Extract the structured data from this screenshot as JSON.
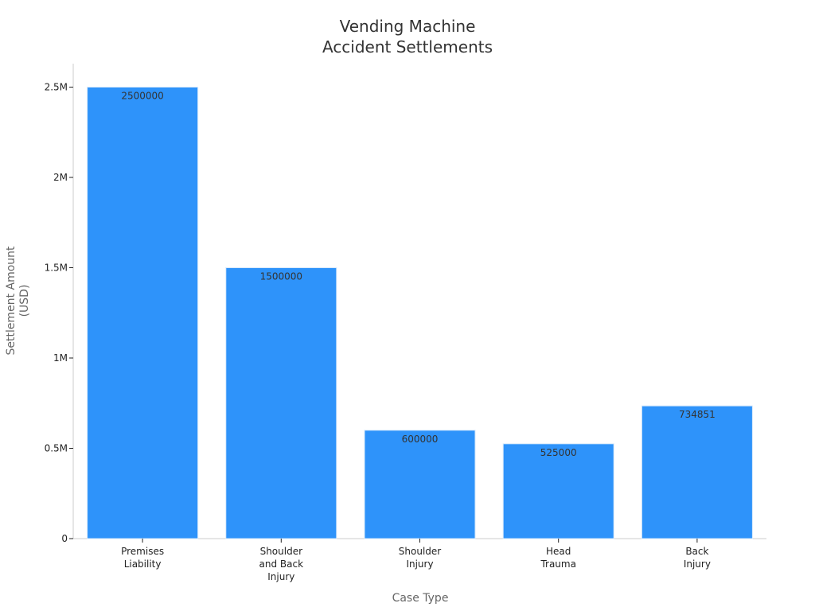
{
  "chart_data": {
    "type": "bar",
    "title": [
      "Vending Machine",
      "Accident Settlements"
    ],
    "xlabel": "Case Type",
    "ylabel": [
      "Settlement Amount",
      "(USD)"
    ],
    "categories": [
      [
        "Premises",
        "Liability"
      ],
      [
        "Shoulder",
        "and Back",
        "Injury"
      ],
      [
        "Shoulder",
        "Injury"
      ],
      [
        "Head",
        "Trauma"
      ],
      [
        "Back",
        "Injury"
      ]
    ],
    "values": [
      2500000,
      1500000,
      600000,
      525000,
      734851
    ],
    "data_labels": [
      "2500000",
      "1500000",
      "600000",
      "525000",
      "734851"
    ],
    "ylim": [
      0,
      2630000
    ],
    "yticks": [
      0,
      500000,
      1000000,
      1500000,
      2000000,
      2500000
    ],
    "ytick_labels": [
      "0",
      "0.5M",
      "1M",
      "1.5M",
      "2M",
      "2.5M"
    ],
    "grid": false,
    "legend": "none",
    "colors": {
      "bar": "#2e93fa",
      "bar_edge": "#d6e8fb",
      "axis": "#cccccc",
      "title": "#333333",
      "label": "#666666",
      "tick": "#222222",
      "data_label": "#333333"
    }
  }
}
